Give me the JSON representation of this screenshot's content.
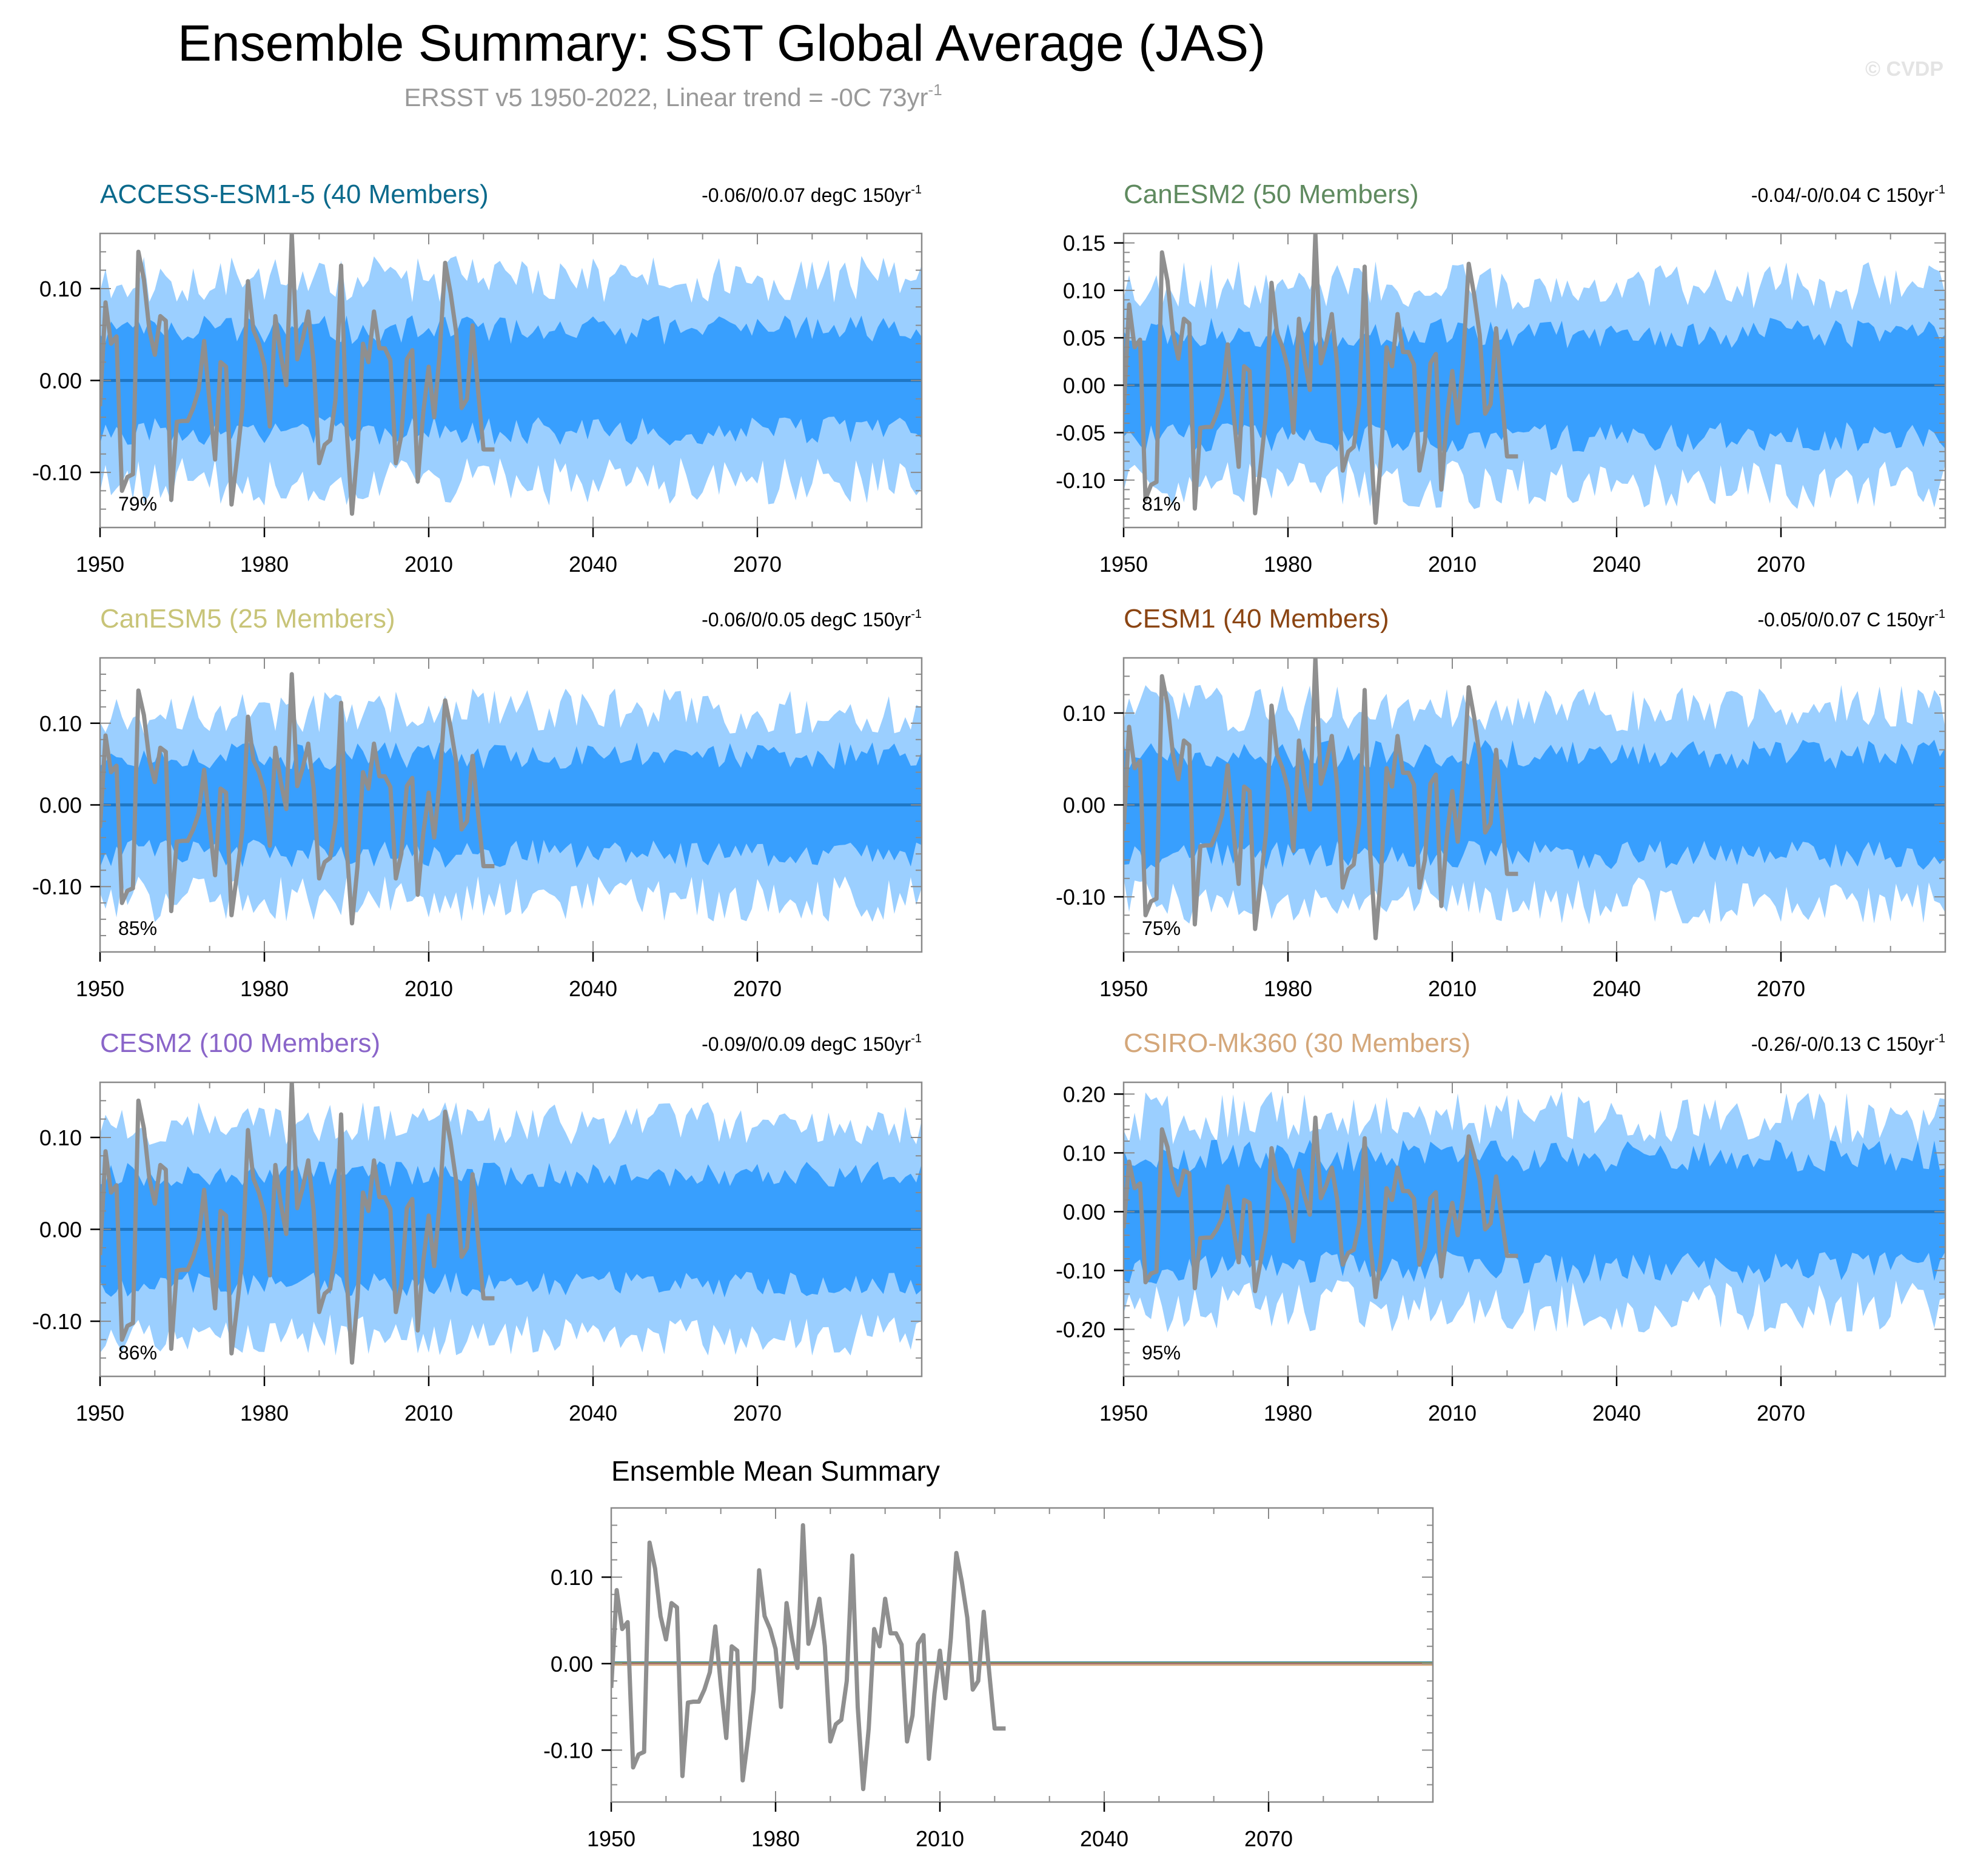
{
  "page": {
    "title": "Ensemble Summary: SST Global Average (JAS)",
    "subtitle": "ERSST v5 1950-2022, Linear trend = -0C 73yr",
    "subtitle_sup": "-1",
    "watermark": "© CVDP"
  },
  "colors": {
    "outer_band": "#9bcfff",
    "inner_band": "#389ffe",
    "ensemble_mean": "#1f77c4",
    "observations": "#8f8f8f",
    "frame": "#8a8a8a"
  },
  "chart_data": [
    {
      "type": "area",
      "id": "access",
      "title": "ACCESS-ESM1-5 (40 Members)",
      "title_color": "#0b6a8c",
      "trend_label": "-0.06/0/0.07 degC 150yr",
      "trend_sup": "-1",
      "percent_label": "79%",
      "x_range": [
        1950,
        2100
      ],
      "ylim": [
        -0.16,
        0.16
      ],
      "xticks": [
        1950,
        1980,
        2010,
        2040,
        2070
      ],
      "xticklabels": [
        "1950",
        "1980",
        "2010",
        "2040",
        "2070"
      ],
      "yticks": [
        -0.1,
        0.0,
        0.1
      ],
      "yticklabels": [
        "-0.10",
        "0.00",
        "0.10"
      ],
      "outer_half_width": 0.11,
      "inner_half_width": 0.055,
      "noise": 0.02,
      "seed": 11
    },
    {
      "type": "area",
      "id": "canesm2",
      "title": "CanESM2 (50 Members)",
      "title_color": "#5f8a5f",
      "trend_label": "-0.04/-0/0.04 C 150yr",
      "trend_sup": "-1",
      "percent_label": "81%",
      "x_range": [
        1950,
        2100
      ],
      "ylim": [
        -0.15,
        0.16
      ],
      "xticks": [
        1950,
        1980,
        2010,
        2040,
        2070
      ],
      "xticklabels": [
        "1950",
        "1980",
        "2010",
        "2040",
        "2070"
      ],
      "yticks": [
        -0.1,
        -0.05,
        0.0,
        0.05,
        0.1,
        0.15
      ],
      "yticklabels": [
        "-0.10",
        "-0.05",
        "0.00",
        "0.05",
        "0.10",
        "0.15"
      ],
      "outer_half_width": 0.105,
      "inner_half_width": 0.055,
      "noise": 0.02,
      "seed": 23
    },
    {
      "type": "area",
      "id": "canesm5",
      "title": "CanESM5 (25 Members)",
      "title_color": "#c8c478",
      "trend_label": "-0.06/0/0.05 degC 150yr",
      "trend_sup": "-1",
      "percent_label": "85%",
      "x_range": [
        1950,
        2100
      ],
      "ylim": [
        -0.18,
        0.18
      ],
      "xticks": [
        1950,
        1980,
        2010,
        2040,
        2070
      ],
      "xticklabels": [
        "1950",
        "1980",
        "2010",
        "2040",
        "2070"
      ],
      "yticks": [
        -0.1,
        0.0,
        0.1
      ],
      "yticklabels": [
        "-0.10",
        "0.00",
        "0.10"
      ],
      "outer_half_width": 0.115,
      "inner_half_width": 0.06,
      "noise": 0.022,
      "seed": 37
    },
    {
      "type": "area",
      "id": "cesm1",
      "title": "CESM1 (40 Members)",
      "title_color": "#8b4513",
      "trend_label": "-0.05/0/0.07 C 150yr",
      "trend_sup": "-1",
      "percent_label": "75%",
      "x_range": [
        1950,
        2100
      ],
      "ylim": [
        -0.16,
        0.16
      ],
      "xticks": [
        1950,
        1980,
        2010,
        2040,
        2070
      ],
      "xticklabels": [
        "1950",
        "1980",
        "2010",
        "2040",
        "2070"
      ],
      "yticks": [
        -0.1,
        0.0,
        0.1
      ],
      "yticklabels": [
        "-0.10",
        "0.00",
        "0.10"
      ],
      "outer_half_width": 0.105,
      "inner_half_width": 0.055,
      "noise": 0.02,
      "seed": 41
    },
    {
      "type": "area",
      "id": "cesm2",
      "title": "CESM2 (100 Members)",
      "title_color": "#8a65c9",
      "trend_label": "-0.09/0/0.09 degC 150yr",
      "trend_sup": "-1",
      "percent_label": "86%",
      "x_range": [
        1950,
        2100
      ],
      "ylim": [
        -0.16,
        0.16
      ],
      "xticks": [
        1950,
        1980,
        2010,
        2040,
        2070
      ],
      "xticklabels": [
        "1950",
        "1980",
        "2010",
        "2040",
        "2070"
      ],
      "yticks": [
        -0.1,
        0.0,
        0.1
      ],
      "yticklabels": [
        "-0.10",
        "0.00",
        "0.10"
      ],
      "outer_half_width": 0.115,
      "inner_half_width": 0.06,
      "noise": 0.018,
      "seed": 53
    },
    {
      "type": "area",
      "id": "csiro",
      "title": "CSIRO-Mk360 (30 Members)",
      "title_color": "#d4a77a",
      "trend_label": "-0.26/-0/0.13 C 150yr",
      "trend_sup": "-1",
      "percent_label": "95%",
      "x_range": [
        1950,
        2100
      ],
      "ylim": [
        -0.28,
        0.22
      ],
      "xticks": [
        1950,
        1980,
        2010,
        2040,
        2070
      ],
      "xticklabels": [
        "1950",
        "1980",
        "2010",
        "2040",
        "2070"
      ],
      "yticks": [
        -0.2,
        -0.1,
        0.0,
        0.1,
        0.2
      ],
      "yticklabels": [
        "-0.20",
        "-0.10",
        "0.00",
        "0.10",
        "0.20"
      ],
      "outer_half_width": 0.16,
      "inner_half_width": 0.095,
      "noise": 0.035,
      "seed": 67
    },
    {
      "type": "line",
      "id": "mean",
      "title": "Ensemble Mean Summary",
      "x_range": [
        1950,
        2100
      ],
      "ylim": [
        -0.16,
        0.18
      ],
      "xticks": [
        1950,
        1980,
        2010,
        2040,
        2070
      ],
      "xticklabels": [
        "1950",
        "1980",
        "2010",
        "2040",
        "2070"
      ],
      "yticks": [
        -0.1,
        0.0,
        0.1
      ],
      "yticklabels": [
        "-0.10",
        "0.00",
        "0.10"
      ],
      "series": [
        {
          "name": "ACCESS-ESM1-5",
          "color": "#0b6a8c",
          "value": 0.0
        },
        {
          "name": "CanESM2",
          "color": "#5f8a5f",
          "value": 0.0
        },
        {
          "name": "CanESM5",
          "color": "#c8c478",
          "value": 0.0
        },
        {
          "name": "CESM1",
          "color": "#8b4513",
          "value": 0.0
        },
        {
          "name": "CESM2",
          "color": "#8a65c9",
          "value": 0.0
        },
        {
          "name": "CSIRO-Mk360",
          "color": "#d4a77a",
          "value": 0.0
        }
      ]
    }
  ],
  "observations": {
    "name": "ERSST v5",
    "years": [
      1950,
      1951,
      1952,
      1953,
      1954,
      1955,
      1956,
      1957,
      1958,
      1959,
      1960,
      1961,
      1962,
      1963,
      1964,
      1965,
      1966,
      1967,
      1968,
      1969,
      1970,
      1971,
      1972,
      1973,
      1974,
      1975,
      1976,
      1977,
      1978,
      1979,
      1980,
      1981,
      1982,
      1983,
      1984,
      1985,
      1986,
      1987,
      1988,
      1989,
      1990,
      1991,
      1992,
      1993,
      1994,
      1995,
      1996,
      1997,
      1998,
      1999,
      2000,
      2001,
      2002,
      2003,
      2004,
      2005,
      2006,
      2007,
      2008,
      2009,
      2010,
      2011,
      2012,
      2013,
      2014,
      2015,
      2016,
      2017,
      2018,
      2019,
      2020,
      2021,
      2022
    ],
    "values": [
      -0.028,
      0.085,
      0.04,
      0.048,
      -0.12,
      -0.105,
      -0.102,
      0.14,
      0.11,
      0.055,
      0.028,
      0.07,
      0.065,
      -0.13,
      -0.045,
      -0.044,
      -0.044,
      -0.03,
      -0.01,
      0.043,
      -0.025,
      -0.086,
      0.02,
      0.015,
      -0.135,
      -0.085,
      -0.03,
      0.108,
      0.055,
      0.04,
      0.017,
      -0.05,
      0.07,
      0.028,
      -0.005,
      0.16,
      0.023,
      0.045,
      0.075,
      0.02,
      -0.09,
      -0.07,
      -0.065,
      -0.02,
      0.125,
      -0.05,
      -0.145,
      -0.075,
      0.04,
      0.02,
      0.075,
      0.035,
      0.035,
      0.022,
      -0.09,
      -0.06,
      0.023,
      0.033,
      -0.11,
      -0.035,
      0.015,
      -0.04,
      0.03,
      0.128,
      0.095,
      0.053,
      -0.03,
      -0.02,
      0.06,
      -0.01,
      -0.075,
      -0.075,
      -0.075
    ]
  }
}
